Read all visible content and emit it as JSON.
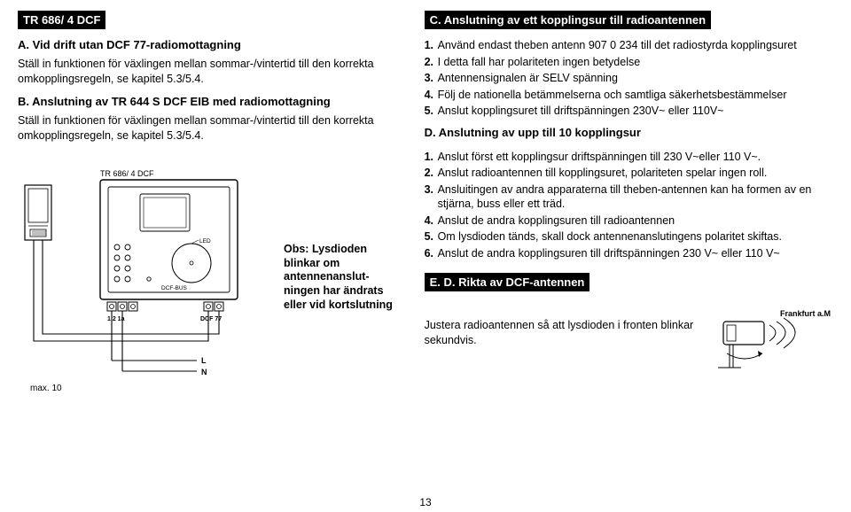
{
  "left": {
    "bar": "TR 686/ 4 DCF",
    "a_title": "A. Vid drift utan DCF 77-radiomottagning",
    "a_body": "Ställ in funktionen för växlingen mellan sommar-/vintertid till den korrekta omkopplingsregeln, se kapitel 5.3/5.4.",
    "b_title": "B. Anslutning av TR 644 S DCF EIB med radiomottagning",
    "b_body": "Ställ in funktionen för växlingen mellan sommar-/vintertid till den korrekta omkopplingsregeln, se kapitel 5.3/5.4.",
    "diagram": {
      "title": "TR 686/ 4 DCF",
      "led": "LED",
      "dcf_bus": "DCF-BUS",
      "pins_left": "1  2  1a",
      "pins_right": "DCF 77",
      "L": "L",
      "N": "N",
      "max": "max. 10"
    },
    "obs": "Obs: Lysdioden blinkar om antennenanslut-ningen har ändrats eller vid kortslutning"
  },
  "right": {
    "bar": "C. Anslutning av ett kopplingsur till radioantennen",
    "c_items": [
      {
        "n": "1.",
        "t": "Använd endast theben antenn 907 0 234 till det radiostyrda kopplingsuret"
      },
      {
        "n": "2.",
        "t": "I detta fall har polariteten ingen betydelse"
      },
      {
        "n": "3.",
        "t": "Antennensignalen är SELV spänning"
      },
      {
        "n": "4.",
        "t": "Följ de nationella betämmelserna och samtliga säkerhetsbestämmelser"
      },
      {
        "n": "5.",
        "t": "Anslut kopplingsuret till driftspänningen 230V~ eller 110V~"
      }
    ],
    "d_title": "D. Anslutning av upp till 10 kopplingsur",
    "d_items": [
      {
        "n": "1.",
        "t": "Anslut först ett kopplingsur driftspänningen till 230 V~eller 110 V~."
      },
      {
        "n": "2.",
        "t": "Anslut radioantennen till kopplingsuret, polariteten spelar ingen roll."
      },
      {
        "n": "3.",
        "t": "Ansluitingen av andra apparaterna till theben-antennen kan ha formen av en stjärna, buss eller ett träd."
      },
      {
        "n": "4.",
        "t": "Anslut de andra kopplingsuren till radioantennen"
      },
      {
        "n": "5.",
        "t": "Om lysdioden tänds, skall dock antennenanslutingens polaritet skiftas."
      },
      {
        "n": "6.",
        "t": "Anslut de andra kopplingsuren till driftspänningen 230 V~ eller 110 V~"
      }
    ],
    "e_bar": "E. D. Rikta av DCF-antennen",
    "e_text": "Justera radioantennen så att lysdioden i fronten blinkar sekundvis.",
    "frankfurt": "Frankfurt a.M"
  },
  "page_num": "13"
}
